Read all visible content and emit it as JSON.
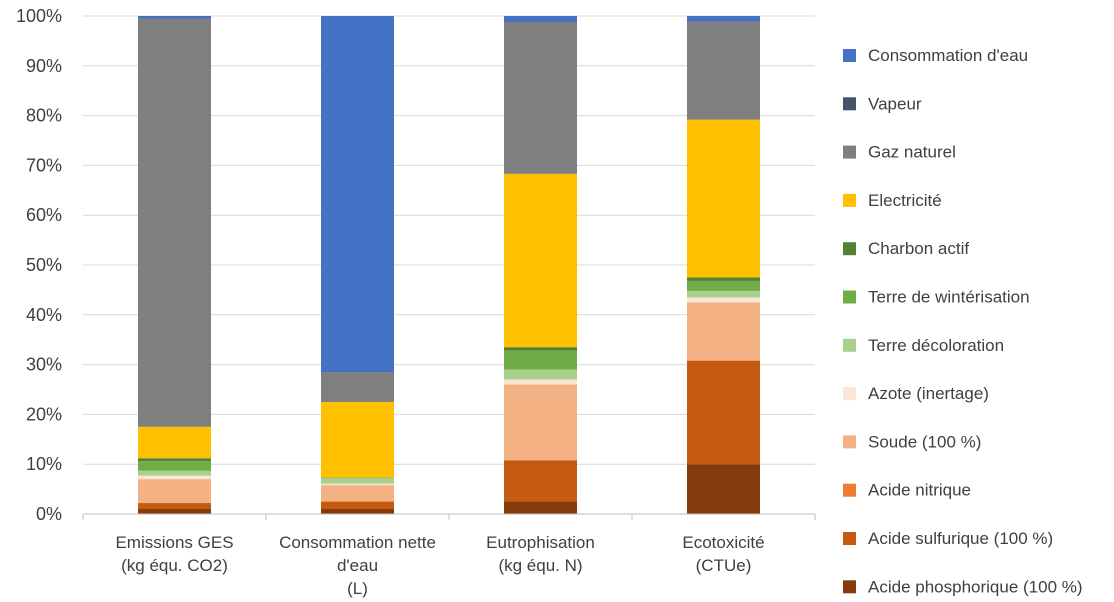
{
  "chart_data": {
    "type": "bar",
    "stacked": true,
    "percent": true,
    "categories": [
      [
        "Emissions GES",
        "(kg équ. CO2)"
      ],
      [
        "Consommation nette",
        "d'eau",
        "(L)"
      ],
      [
        "Eutrophisation",
        "(kg équ. N)"
      ],
      [
        "Ecotoxicité",
        "(CTUe)"
      ]
    ],
    "y_ticks": [
      "0%",
      "10%",
      "20%",
      "30%",
      "40%",
      "50%",
      "60%",
      "70%",
      "80%",
      "90%",
      "100%"
    ],
    "ylim": [
      0,
      100
    ],
    "grid": true,
    "legend_position": "right",
    "series": [
      {
        "name": "Acide phosphorique (100 %)",
        "color": "#843C0C",
        "values": [
          1.0,
          1.0,
          2.5,
          10.0
        ]
      },
      {
        "name": "Acide sulfurique (100 %)",
        "color": "#C55A11",
        "values": [
          1.2,
          1.5,
          8.3,
          20.8
        ]
      },
      {
        "name": "Acide nitrique",
        "color": "#ED7D31",
        "values": [
          0.0,
          0.0,
          0.0,
          0.0
        ]
      },
      {
        "name": "Soude (100 %)",
        "color": "#F4B183",
        "values": [
          4.8,
          3.3,
          15.2,
          11.7
        ]
      },
      {
        "name": "Azote (inertage)",
        "color": "#FBE5D6",
        "values": [
          0.7,
          0.3,
          1.0,
          1.0
        ]
      },
      {
        "name": "Terre décoloration",
        "color": "#A9D18E",
        "values": [
          1.0,
          1.1,
          2.0,
          1.3
        ]
      },
      {
        "name": "Terre de wintérisation",
        "color": "#70AD47",
        "values": [
          1.9,
          0.0,
          3.8,
          2.0
        ]
      },
      {
        "name": "Charbon actif",
        "color": "#548235",
        "values": [
          0.6,
          0.1,
          0.7,
          0.7
        ]
      },
      {
        "name": "Electricité",
        "color": "#FFC000",
        "values": [
          6.3,
          15.2,
          34.8,
          31.7
        ]
      },
      {
        "name": "Gaz naturel",
        "color": "#7F7F7F",
        "values": [
          82.0,
          6.0,
          30.5,
          19.7
        ]
      },
      {
        "name": "Vapeur",
        "color": "#44546A",
        "values": [
          0.0,
          0.0,
          0.0,
          0.0
        ]
      },
      {
        "name": "Consommation d'eau",
        "color": "#4472C4",
        "values": [
          0.5,
          71.5,
          1.2,
          1.1
        ]
      }
    ],
    "legend_order": [
      "Consommation d'eau",
      "Vapeur",
      "Gaz naturel",
      "Electricité",
      "Charbon actif",
      "Terre de wintérisation",
      "Terre décoloration",
      "Azote (inertage)",
      "Soude (100 %)",
      "Acide nitrique",
      "Acide sulfurique (100 %)",
      "Acide phosphorique (100 %)"
    ]
  }
}
